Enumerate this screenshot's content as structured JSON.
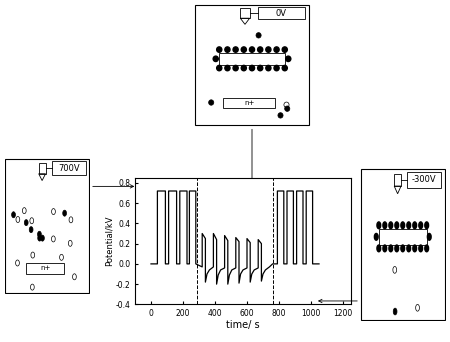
{
  "chart_data": {
    "type": "line",
    "x_label": "time/ s",
    "y_label": "Potential/kV",
    "x": [
      0,
      40,
      40,
      90,
      90,
      110,
      110,
      160,
      160,
      180,
      180,
      225,
      225,
      240,
      240,
      280,
      280,
      320,
      320,
      340,
      340,
      350,
      365,
      390,
      390,
      410,
      410,
      420,
      435,
      460,
      460,
      480,
      480,
      490,
      505,
      530,
      530,
      550,
      550,
      560,
      575,
      600,
      600,
      620,
      620,
      630,
      645,
      670,
      670,
      690,
      690,
      700,
      715,
      740,
      760,
      790,
      790,
      830,
      830,
      850,
      850,
      890,
      890,
      910,
      910,
      950,
      950,
      970,
      970,
      1010,
      1010,
      1050
    ],
    "values": [
      0.0,
      0.0,
      0.72,
      0.72,
      0.0,
      0.0,
      0.72,
      0.72,
      0.0,
      0.0,
      0.72,
      0.72,
      0.0,
      0.0,
      0.72,
      0.72,
      0.0,
      -0.03,
      0.3,
      0.25,
      -0.18,
      -0.1,
      -0.06,
      -0.03,
      0.3,
      0.24,
      -0.2,
      -0.11,
      -0.06,
      -0.04,
      0.28,
      0.23,
      -0.2,
      -0.11,
      -0.06,
      -0.04,
      0.26,
      0.22,
      -0.19,
      -0.1,
      -0.06,
      -0.04,
      0.25,
      0.21,
      -0.18,
      -0.1,
      -0.06,
      -0.04,
      0.24,
      0.2,
      -0.17,
      -0.1,
      -0.06,
      -0.03,
      0.0,
      0.0,
      0.72,
      0.72,
      0.0,
      0.0,
      0.72,
      0.72,
      0.0,
      0.0,
      0.72,
      0.72,
      0.0,
      0.0,
      0.72,
      0.72,
      0.0,
      0.0
    ],
    "color": "#000000",
    "xlim": [
      -100,
      1250
    ],
    "xticks": [
      0,
      200,
      400,
      600,
      800,
      1000,
      1200
    ],
    "ylim": [
      -0.4,
      0.85
    ],
    "yticks": [
      -0.4,
      -0.2,
      0.0,
      0.2,
      0.4,
      0.6,
      0.8
    ],
    "dashed_lines": [
      290,
      760
    ]
  },
  "insets": [
    {
      "voltage": "700V",
      "electrode": "n+"
    },
    {
      "voltage": "0V",
      "electrode": "n+"
    },
    {
      "voltage": "-300V"
    }
  ]
}
